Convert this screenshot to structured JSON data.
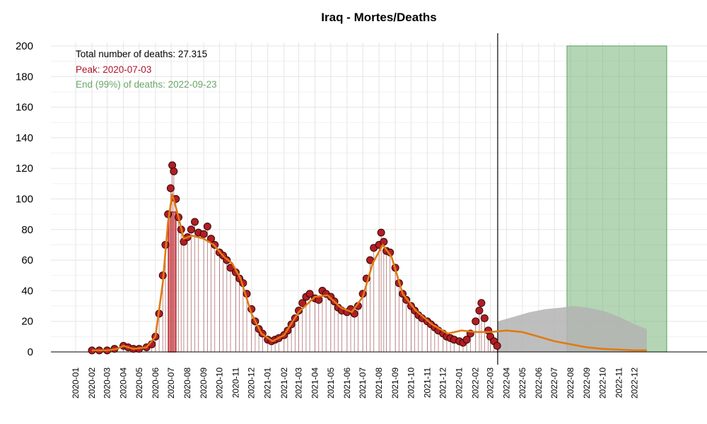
{
  "chart_data": {
    "type": "scatter",
    "title": "Iraq - Mortes/Deaths",
    "xlabel": "",
    "ylabel": "",
    "ylim": [
      0,
      200
    ],
    "yticks": [
      0,
      20,
      40,
      60,
      80,
      100,
      120,
      140,
      160,
      180,
      200
    ],
    "xlim": [
      "2020-01-01",
      "2023-01-31"
    ],
    "xtick_labels": [
      "2020-01",
      "2020-02",
      "2020-03",
      "2020-04",
      "2020-05",
      "2020-06",
      "2020-07",
      "2020-08",
      "2020-09",
      "2020-10",
      "2020-11",
      "2020-12",
      "2021-01",
      "2021-02",
      "2021-03",
      "2021-04",
      "2021-05",
      "2021-06",
      "2021-07",
      "2021-08",
      "2021-09",
      "2021-10",
      "2021-11",
      "2021-12",
      "2022-01",
      "2022-02",
      "2022-03",
      "2022-04",
      "2022-05",
      "2022-06",
      "2022-07",
      "2022-08",
      "2022-09",
      "2022-10",
      "2022-11",
      "2022-12"
    ],
    "grid": true,
    "annotations": {
      "total": "Total number of deaths: 27.315",
      "peak": "Peak: 2020-07-03",
      "end": "End (99%) of deaths: 2022-09-23"
    },
    "peak_date": "2020-07-03",
    "peak_value": 122,
    "peak_band": [
      "2020-06-26",
      "2020-07-10"
    ],
    "end_band": [
      "2022-07-25",
      "2023-01-31"
    ],
    "current_date": "2022-03-15",
    "observed_points": [
      {
        "x": "2020-02-01",
        "y": 1
      },
      {
        "x": "2020-02-15",
        "y": 1
      },
      {
        "x": "2020-03-01",
        "y": 1
      },
      {
        "x": "2020-03-15",
        "y": 2
      },
      {
        "x": "2020-04-01",
        "y": 4
      },
      {
        "x": "2020-04-10",
        "y": 3
      },
      {
        "x": "2020-04-20",
        "y": 2
      },
      {
        "x": "2020-05-01",
        "y": 2
      },
      {
        "x": "2020-05-15",
        "y": 3
      },
      {
        "x": "2020-05-25",
        "y": 5
      },
      {
        "x": "2020-06-01",
        "y": 10
      },
      {
        "x": "2020-06-08",
        "y": 25
      },
      {
        "x": "2020-06-15",
        "y": 50
      },
      {
        "x": "2020-06-20",
        "y": 70
      },
      {
        "x": "2020-06-25",
        "y": 90
      },
      {
        "x": "2020-06-30",
        "y": 107
      },
      {
        "x": "2020-07-03",
        "y": 122
      },
      {
        "x": "2020-07-06",
        "y": 118
      },
      {
        "x": "2020-07-10",
        "y": 100
      },
      {
        "x": "2020-07-15",
        "y": 88
      },
      {
        "x": "2020-07-20",
        "y": 80
      },
      {
        "x": "2020-07-25",
        "y": 72
      },
      {
        "x": "2020-08-01",
        "y": 75
      },
      {
        "x": "2020-08-08",
        "y": 80
      },
      {
        "x": "2020-08-15",
        "y": 85
      },
      {
        "x": "2020-08-22",
        "y": 78
      },
      {
        "x": "2020-09-01",
        "y": 77
      },
      {
        "x": "2020-09-08",
        "y": 82
      },
      {
        "x": "2020-09-15",
        "y": 74
      },
      {
        "x": "2020-09-22",
        "y": 70
      },
      {
        "x": "2020-10-01",
        "y": 65
      },
      {
        "x": "2020-10-08",
        "y": 63
      },
      {
        "x": "2020-10-15",
        "y": 60
      },
      {
        "x": "2020-10-22",
        "y": 55
      },
      {
        "x": "2020-11-01",
        "y": 52
      },
      {
        "x": "2020-11-08",
        "y": 48
      },
      {
        "x": "2020-11-15",
        "y": 45
      },
      {
        "x": "2020-11-22",
        "y": 38
      },
      {
        "x": "2020-12-01",
        "y": 28
      },
      {
        "x": "2020-12-08",
        "y": 20
      },
      {
        "x": "2020-12-15",
        "y": 15
      },
      {
        "x": "2020-12-22",
        "y": 12
      },
      {
        "x": "2021-01-01",
        "y": 8
      },
      {
        "x": "2021-01-08",
        "y": 7
      },
      {
        "x": "2021-01-15",
        "y": 8
      },
      {
        "x": "2021-01-22",
        "y": 9
      },
      {
        "x": "2021-02-01",
        "y": 11
      },
      {
        "x": "2021-02-08",
        "y": 14
      },
      {
        "x": "2021-02-15",
        "y": 18
      },
      {
        "x": "2021-02-22",
        "y": 22
      },
      {
        "x": "2021-03-01",
        "y": 27
      },
      {
        "x": "2021-03-08",
        "y": 32
      },
      {
        "x": "2021-03-15",
        "y": 36
      },
      {
        "x": "2021-03-22",
        "y": 38
      },
      {
        "x": "2021-04-01",
        "y": 35
      },
      {
        "x": "2021-04-08",
        "y": 34
      },
      {
        "x": "2021-04-15",
        "y": 40
      },
      {
        "x": "2021-04-22",
        "y": 38
      },
      {
        "x": "2021-05-01",
        "y": 36
      },
      {
        "x": "2021-05-08",
        "y": 33
      },
      {
        "x": "2021-05-15",
        "y": 29
      },
      {
        "x": "2021-05-22",
        "y": 27
      },
      {
        "x": "2021-06-01",
        "y": 26
      },
      {
        "x": "2021-06-08",
        "y": 28
      },
      {
        "x": "2021-06-15",
        "y": 25
      },
      {
        "x": "2021-06-22",
        "y": 30
      },
      {
        "x": "2021-07-01",
        "y": 38
      },
      {
        "x": "2021-07-08",
        "y": 48
      },
      {
        "x": "2021-07-15",
        "y": 60
      },
      {
        "x": "2021-07-22",
        "y": 68
      },
      {
        "x": "2021-08-01",
        "y": 70
      },
      {
        "x": "2021-08-05",
        "y": 78
      },
      {
        "x": "2021-08-10",
        "y": 72
      },
      {
        "x": "2021-08-15",
        "y": 66
      },
      {
        "x": "2021-08-22",
        "y": 65
      },
      {
        "x": "2021-09-01",
        "y": 55
      },
      {
        "x": "2021-09-08",
        "y": 45
      },
      {
        "x": "2021-09-15",
        "y": 38
      },
      {
        "x": "2021-09-22",
        "y": 34
      },
      {
        "x": "2021-10-01",
        "y": 30
      },
      {
        "x": "2021-10-08",
        "y": 27
      },
      {
        "x": "2021-10-15",
        "y": 24
      },
      {
        "x": "2021-10-22",
        "y": 22
      },
      {
        "x": "2021-11-01",
        "y": 20
      },
      {
        "x": "2021-11-08",
        "y": 18
      },
      {
        "x": "2021-11-15",
        "y": 16
      },
      {
        "x": "2021-11-22",
        "y": 14
      },
      {
        "x": "2021-12-01",
        "y": 12
      },
      {
        "x": "2021-12-08",
        "y": 10
      },
      {
        "x": "2021-12-15",
        "y": 9
      },
      {
        "x": "2021-12-22",
        "y": 8
      },
      {
        "x": "2022-01-01",
        "y": 7
      },
      {
        "x": "2022-01-08",
        "y": 6
      },
      {
        "x": "2022-01-15",
        "y": 8
      },
      {
        "x": "2022-01-22",
        "y": 12
      },
      {
        "x": "2022-02-01",
        "y": 20
      },
      {
        "x": "2022-02-08",
        "y": 27
      },
      {
        "x": "2022-02-12",
        "y": 32
      },
      {
        "x": "2022-02-18",
        "y": 22
      },
      {
        "x": "2022-02-25",
        "y": 14
      },
      {
        "x": "2022-03-01",
        "y": 10
      },
      {
        "x": "2022-03-08",
        "y": 7
      },
      {
        "x": "2022-03-14",
        "y": 4
      }
    ],
    "fitted_curve": [
      {
        "x": "2020-02-01",
        "y": 1
      },
      {
        "x": "2020-03-01",
        "y": 1
      },
      {
        "x": "2020-03-20",
        "y": 2
      },
      {
        "x": "2020-04-01",
        "y": 4
      },
      {
        "x": "2020-04-20",
        "y": 2
      },
      {
        "x": "2020-05-15",
        "y": 3
      },
      {
        "x": "2020-06-01",
        "y": 10
      },
      {
        "x": "2020-06-15",
        "y": 45
      },
      {
        "x": "2020-06-25",
        "y": 85
      },
      {
        "x": "2020-07-03",
        "y": 103
      },
      {
        "x": "2020-07-12",
        "y": 92
      },
      {
        "x": "2020-07-25",
        "y": 74
      },
      {
        "x": "2020-08-10",
        "y": 76
      },
      {
        "x": "2020-09-01",
        "y": 74
      },
      {
        "x": "2020-09-20",
        "y": 70
      },
      {
        "x": "2020-10-10",
        "y": 62
      },
      {
        "x": "2020-10-25",
        "y": 58
      },
      {
        "x": "2020-11-10",
        "y": 48
      },
      {
        "x": "2020-12-01",
        "y": 25
      },
      {
        "x": "2020-12-20",
        "y": 12
      },
      {
        "x": "2021-01-10",
        "y": 7
      },
      {
        "x": "2021-02-01",
        "y": 11
      },
      {
        "x": "2021-03-01",
        "y": 26
      },
      {
        "x": "2021-04-01",
        "y": 36
      },
      {
        "x": "2021-04-25",
        "y": 37
      },
      {
        "x": "2021-05-20",
        "y": 29
      },
      {
        "x": "2021-06-10",
        "y": 26
      },
      {
        "x": "2021-07-01",
        "y": 36
      },
      {
        "x": "2021-07-20",
        "y": 58
      },
      {
        "x": "2021-08-08",
        "y": 70
      },
      {
        "x": "2021-08-25",
        "y": 62
      },
      {
        "x": "2021-09-15",
        "y": 38
      },
      {
        "x": "2021-10-10",
        "y": 27
      },
      {
        "x": "2021-11-10",
        "y": 18
      },
      {
        "x": "2021-12-10",
        "y": 12
      },
      {
        "x": "2022-01-05",
        "y": 14
      },
      {
        "x": "2022-02-01",
        "y": 13
      },
      {
        "x": "2022-03-01",
        "y": 13
      },
      {
        "x": "2022-04-01",
        "y": 14
      },
      {
        "x": "2022-05-01",
        "y": 13
      },
      {
        "x": "2022-06-01",
        "y": 10
      },
      {
        "x": "2022-07-01",
        "y": 7
      },
      {
        "x": "2022-08-01",
        "y": 5
      },
      {
        "x": "2022-09-01",
        "y": 3
      },
      {
        "x": "2022-10-01",
        "y": 2
      },
      {
        "x": "2022-11-01",
        "y": 1.5
      },
      {
        "x": "2022-12-01",
        "y": 1
      },
      {
        "x": "2022-12-24",
        "y": 1
      }
    ],
    "projection_area": [
      {
        "x": "2022-03-15",
        "y": 20
      },
      {
        "x": "2022-04-15",
        "y": 23
      },
      {
        "x": "2022-05-15",
        "y": 26
      },
      {
        "x": "2022-06-15",
        "y": 28
      },
      {
        "x": "2022-07-15",
        "y": 29
      },
      {
        "x": "2022-08-05",
        "y": 30
      },
      {
        "x": "2022-09-01",
        "y": 29
      },
      {
        "x": "2022-10-01",
        "y": 27
      },
      {
        "x": "2022-11-01",
        "y": 23
      },
      {
        "x": "2022-12-01",
        "y": 18
      },
      {
        "x": "2022-12-24",
        "y": 15
      }
    ]
  },
  "colors": {
    "point_fill": "#b01e24",
    "point_stroke": "#3a0505",
    "curve": "#e07a12",
    "peak_band": "#d2333d",
    "end_band": "#77b577",
    "projection": "#b3b3b3",
    "annotation_total": "#000000",
    "annotation_peak": "#b0142a",
    "annotation_end": "#6aa66a",
    "grid": "#e5e5e5"
  }
}
